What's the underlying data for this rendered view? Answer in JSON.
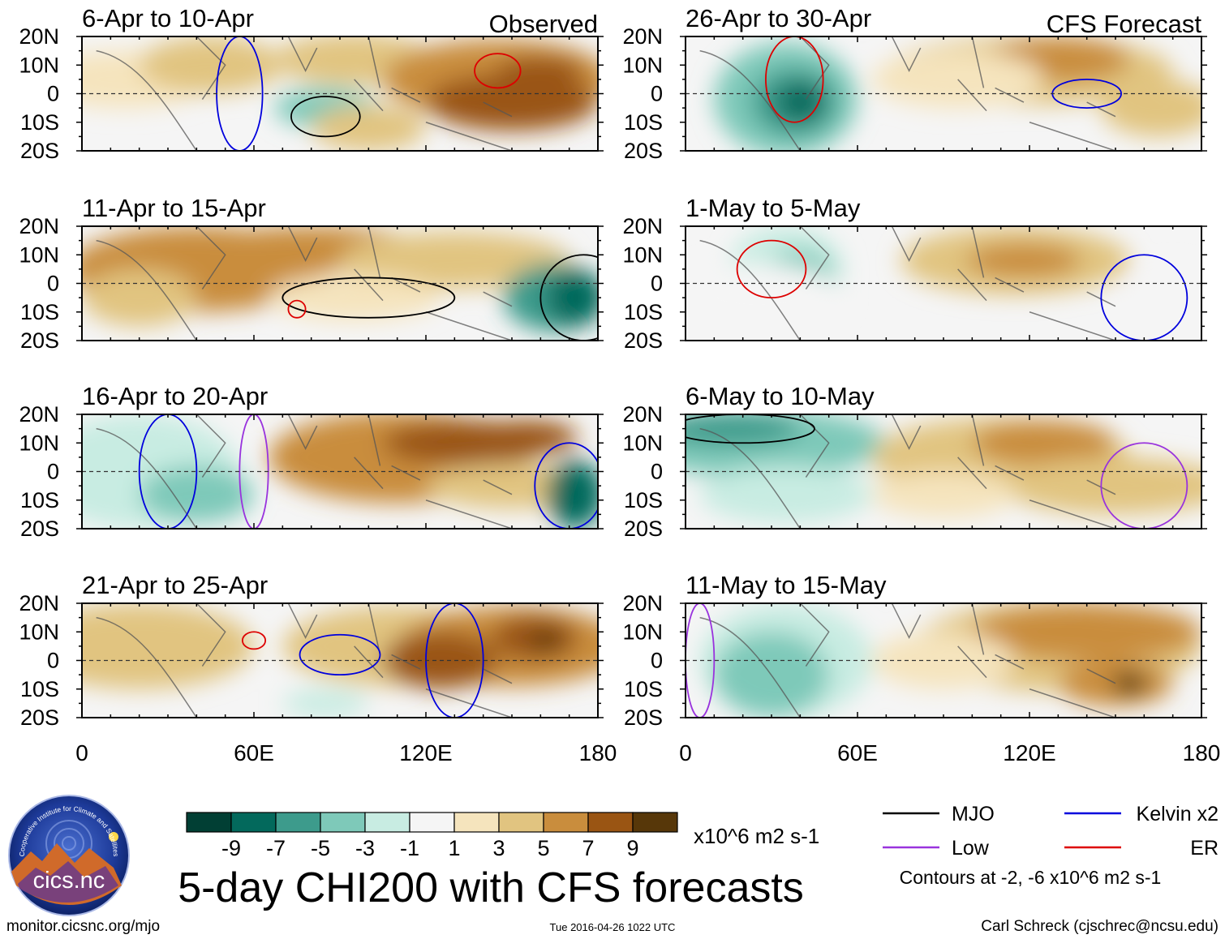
{
  "chart_data": {
    "type": "heatmap",
    "title": "5-day CHI200 with CFS forecasts",
    "units": "x10^6 m2 s-1",
    "x_ticks": [
      "0",
      "60E",
      "120E",
      "180"
    ],
    "y_ticks": [
      "20N",
      "10N",
      "0",
      "10S",
      "20S"
    ],
    "xlim": [
      0,
      180
    ],
    "ylim": [
      -20,
      20
    ],
    "columns": [
      {
        "label": "Observed",
        "panels": [
          "6-Apr to 10-Apr",
          "11-Apr to 15-Apr",
          "16-Apr to 20-Apr",
          "21-Apr to 25-Apr"
        ]
      },
      {
        "label": "CFS Forecast",
        "panels": [
          "26-Apr to 30-Apr",
          "1-May to 5-May",
          "6-May to 10-May",
          "11-May to 15-May"
        ]
      }
    ],
    "colorbar": {
      "ticks": [
        "-9",
        "-7",
        "-5",
        "-3",
        "-1",
        "1",
        "3",
        "5",
        "7",
        "9"
      ],
      "colors": [
        "#013f34",
        "#03695c",
        "#3d9b8c",
        "#7ec9b9",
        "#c8ece2",
        "#f5f5f5",
        "#f5e4bd",
        "#e1c480",
        "#c98d3d",
        "#9a5513",
        "#573709"
      ]
    },
    "legend": [
      {
        "label": "MJO",
        "color": "#000000"
      },
      {
        "label": "Kelvin x2",
        "color": "#0000dd"
      },
      {
        "label": "Low",
        "color": "#9933dd"
      },
      {
        "label": "ER",
        "color": "#dd0000"
      }
    ],
    "contour_note": "Contours at -2, -6 x10^6 m2 s-1"
  },
  "footer": {
    "url": "monitor.cicsnc.org/mjo",
    "timestamp": "Tue 2016-04-26 1022 UTC",
    "author": "Carl Schreck (cjschrec@ncsu.edu)"
  },
  "logo": {
    "name": "cics.nc",
    "ring_text": "Cooperative Institute for Climate and Satellites"
  }
}
